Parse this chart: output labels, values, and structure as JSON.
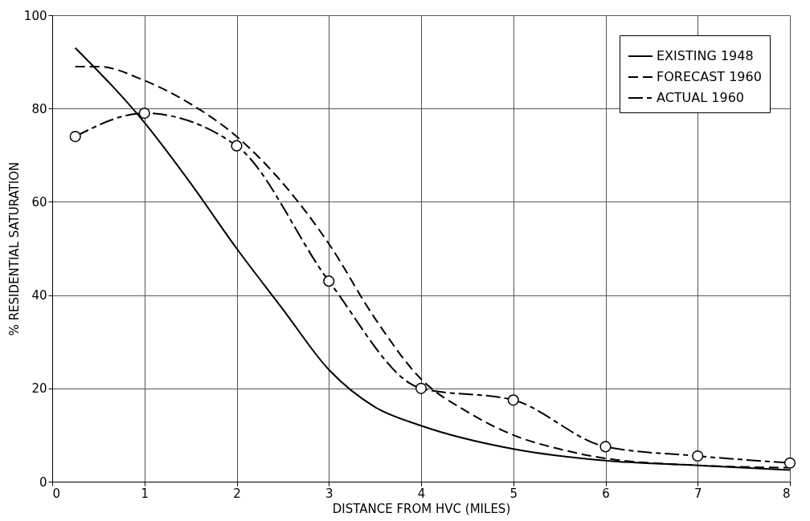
{
  "chart_data": {
    "type": "line",
    "xlabel": "DISTANCE FROM HVC (MILES)",
    "ylabel": "% RESIDENTIAL SATURATION",
    "xlim": [
      0,
      8
    ],
    "xticks": [
      0,
      1,
      2,
      3,
      4,
      5,
      6,
      7,
      8
    ],
    "ylim": [
      0,
      100
    ],
    "yticks": [
      0,
      20,
      40,
      60,
      80,
      100
    ],
    "grid": true,
    "legend": "top right",
    "series": [
      {
        "name": "EXISTING 1948",
        "color": "#000000",
        "line_style": "solid",
        "marker": "none",
        "x": [
          0.25,
          1,
          1.5,
          2,
          2.5,
          3,
          3.5,
          4,
          5,
          6,
          7,
          8
        ],
        "values": [
          93,
          77,
          64,
          50,
          37,
          24,
          16,
          12,
          7,
          4.5,
          3.5,
          2.5
        ]
      },
      {
        "name": "FORECAST 1960",
        "color": "#000000",
        "line_style": "dashed",
        "marker": "none",
        "x": [
          0.25,
          0.5,
          1,
          1.5,
          2,
          2.5,
          3,
          3.5,
          4,
          4.5,
          5,
          5.5,
          6,
          7,
          8
        ],
        "values": [
          89,
          89,
          86,
          81,
          74,
          64,
          51,
          35,
          22,
          15,
          10,
          7,
          5,
          3.5,
          3
        ]
      },
      {
        "name": "ACTUAL 1960",
        "color": "#000000",
        "line_style": "dashdot",
        "marker": "circle",
        "x": [
          0.25,
          1,
          2,
          3,
          4,
          5,
          6,
          7,
          8
        ],
        "values": [
          74,
          79,
          72,
          43,
          20,
          17.5,
          7.5,
          5.5,
          4
        ]
      }
    ]
  }
}
